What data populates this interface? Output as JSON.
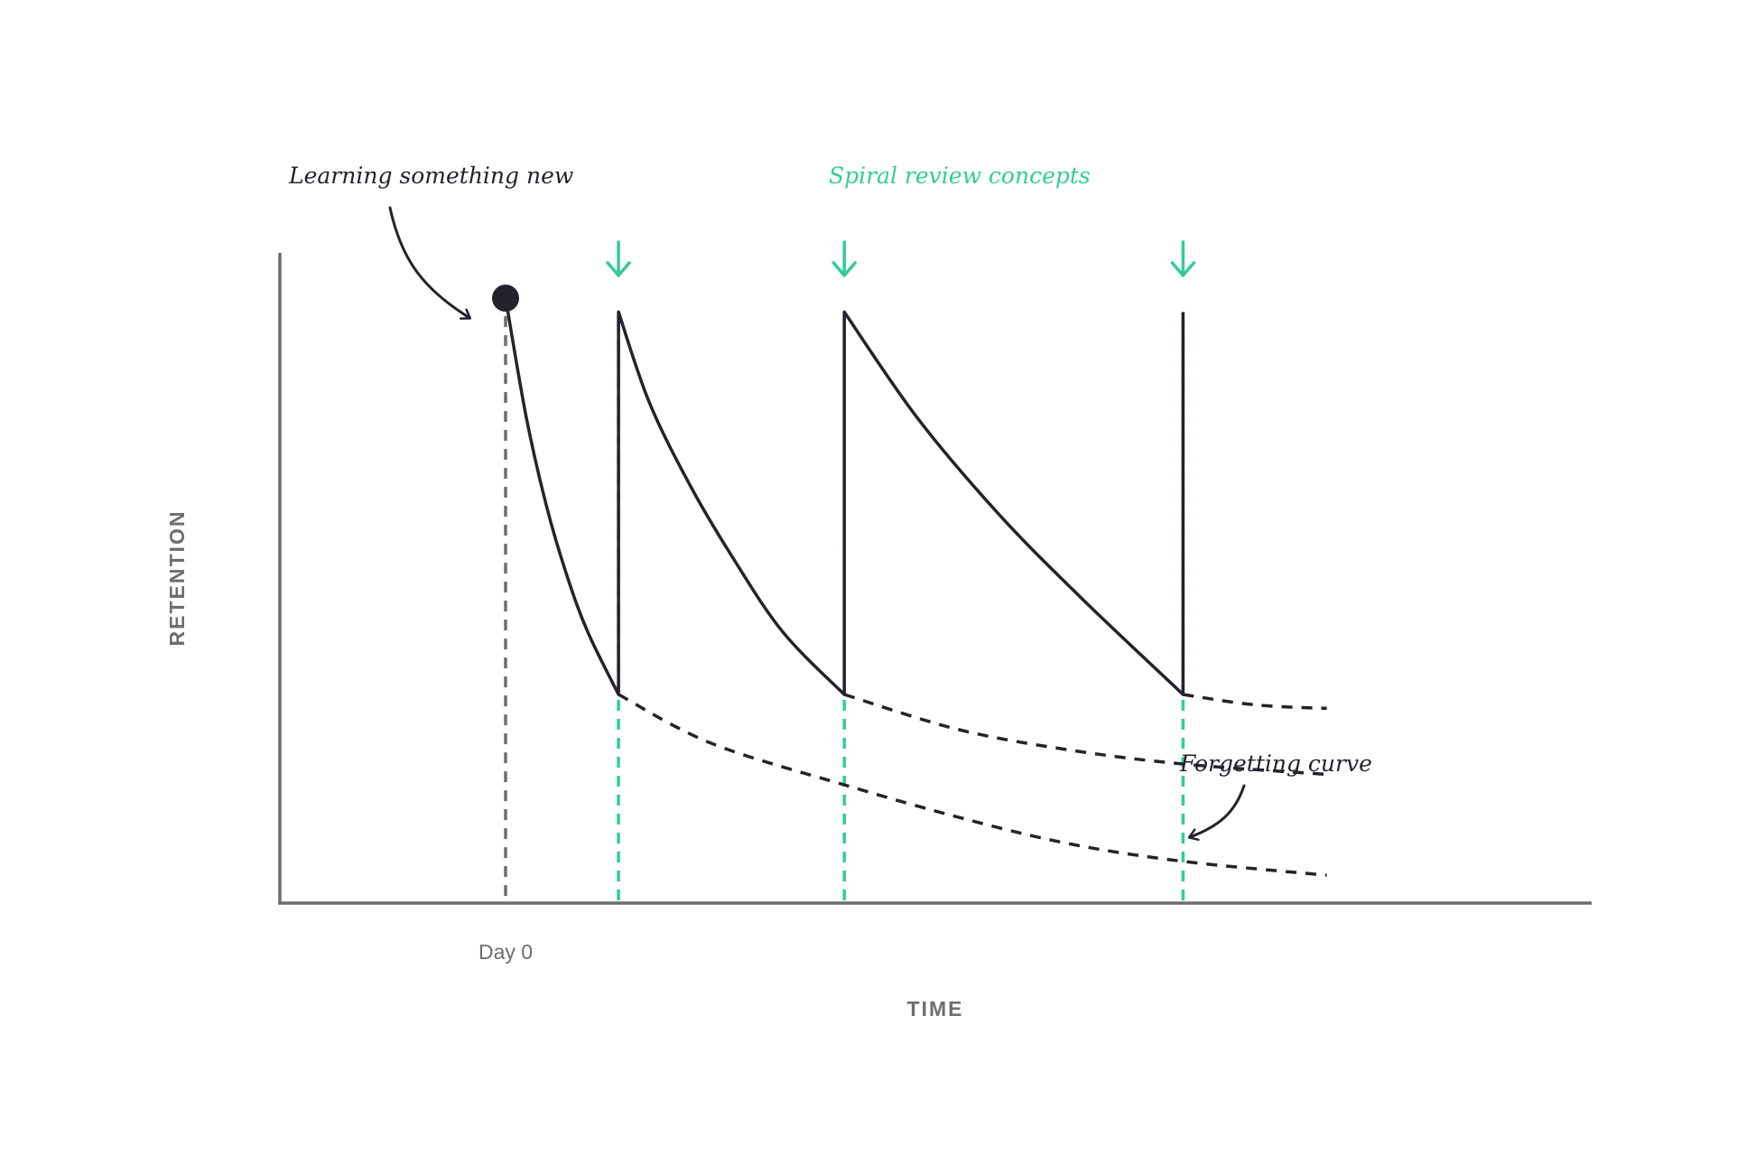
{
  "colors": {
    "ink": "#23232b",
    "axis": "#6e6e70",
    "accent": "#33cc99",
    "label": "#6e6e70"
  },
  "chart_data": {
    "type": "line",
    "xlabel": "TIME",
    "ylabel": "RETENTION",
    "x_tick_labels": [
      "Day 0"
    ],
    "xlim": [
      0,
      100
    ],
    "ylim": [
      0,
      100
    ],
    "grid": false,
    "annotations": {
      "start": "Learning something new",
      "review": "Spiral review concepts",
      "forgetting": "Forgetting curve"
    },
    "start_point": {
      "x": 0,
      "y": 87
    },
    "review_times": [
      11,
      33,
      66
    ],
    "series": [
      {
        "style": "solid",
        "points": [
          [
            0,
            87
          ],
          [
            2,
            70
          ],
          [
            4,
            57
          ],
          [
            6,
            47
          ],
          [
            8,
            39
          ],
          [
            11,
            30
          ],
          [
            11,
            85
          ],
          [
            14,
            72
          ],
          [
            18,
            60
          ],
          [
            22,
            50
          ],
          [
            27,
            39
          ],
          [
            33,
            30
          ],
          [
            33,
            85
          ],
          [
            40,
            70
          ],
          [
            48,
            56
          ],
          [
            56,
            44
          ],
          [
            66,
            30
          ],
          [
            66,
            85
          ]
        ]
      },
      {
        "style": "dashed",
        "points": [
          [
            11,
            30
          ],
          [
            20,
            23
          ],
          [
            33,
            17
          ],
          [
            45,
            12
          ],
          [
            55,
            8.5
          ],
          [
            66,
            6
          ],
          [
            80,
            4
          ]
        ]
      },
      {
        "style": "dashed",
        "points": [
          [
            33,
            30
          ],
          [
            44,
            25
          ],
          [
            55,
            22
          ],
          [
            66,
            20
          ],
          [
            80,
            18.5
          ]
        ]
      },
      {
        "style": "dashed",
        "points": [
          [
            66,
            30
          ],
          [
            73,
            28.5
          ],
          [
            80,
            28
          ]
        ]
      }
    ]
  }
}
